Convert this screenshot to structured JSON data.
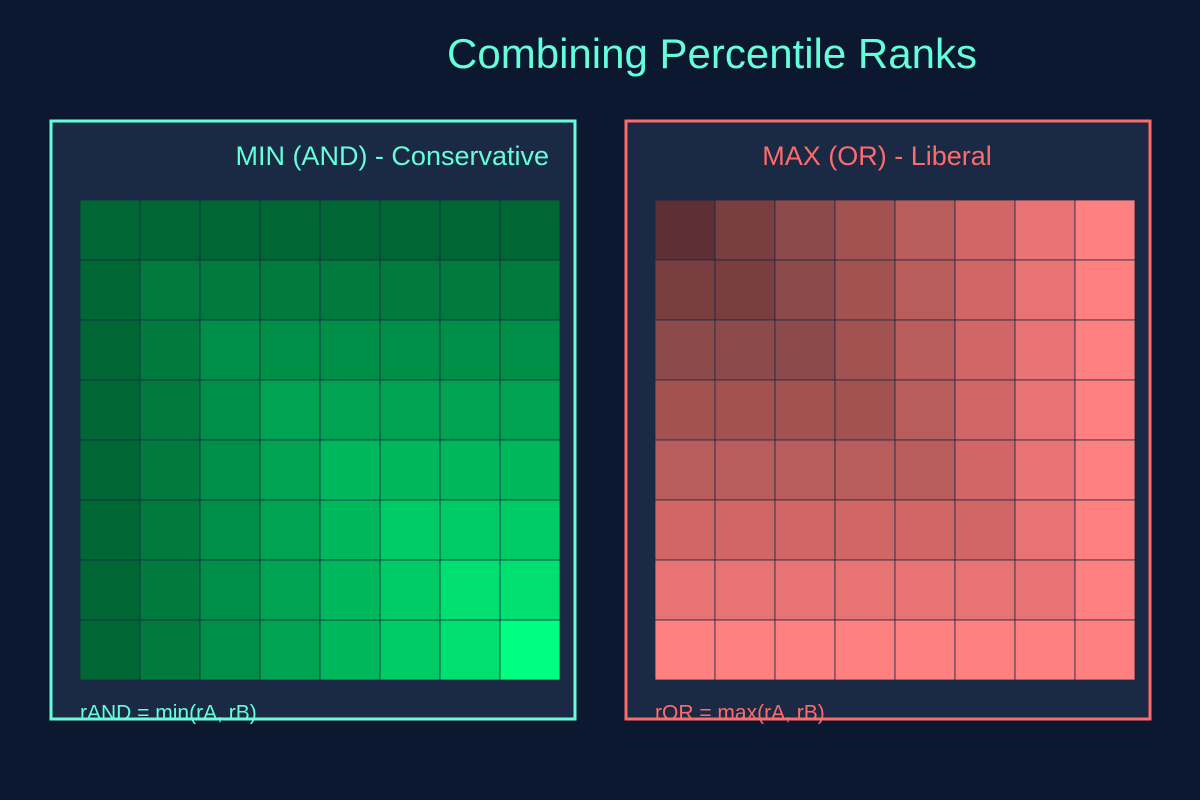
{
  "title": "Combining Percentile Ranks",
  "panels": [
    {
      "title": "MIN (AND) - Conservative",
      "formula": "rAND = min(rA, rB)",
      "rule": "min",
      "accent": "#64ffda",
      "title_color": "#64ffda",
      "levels": [
        "#006633",
        "#007a3d",
        "#008f47",
        "#00a352",
        "#00b85c",
        "#00cc66",
        "#00e070",
        "#00ff80"
      ]
    },
    {
      "title": "MAX (OR) - Liberal",
      "formula": "rOR = max(rA, rB)",
      "rule": "max",
      "accent": "#ff6b6b",
      "title_color": "#ff6b6b",
      "levels": [
        "#5e2f34",
        "#7a3d40",
        "#8c4a4a",
        "#a35252",
        "#b85c5c",
        "#d16666",
        "#e87373",
        "#ff8080"
      ]
    }
  ]
}
